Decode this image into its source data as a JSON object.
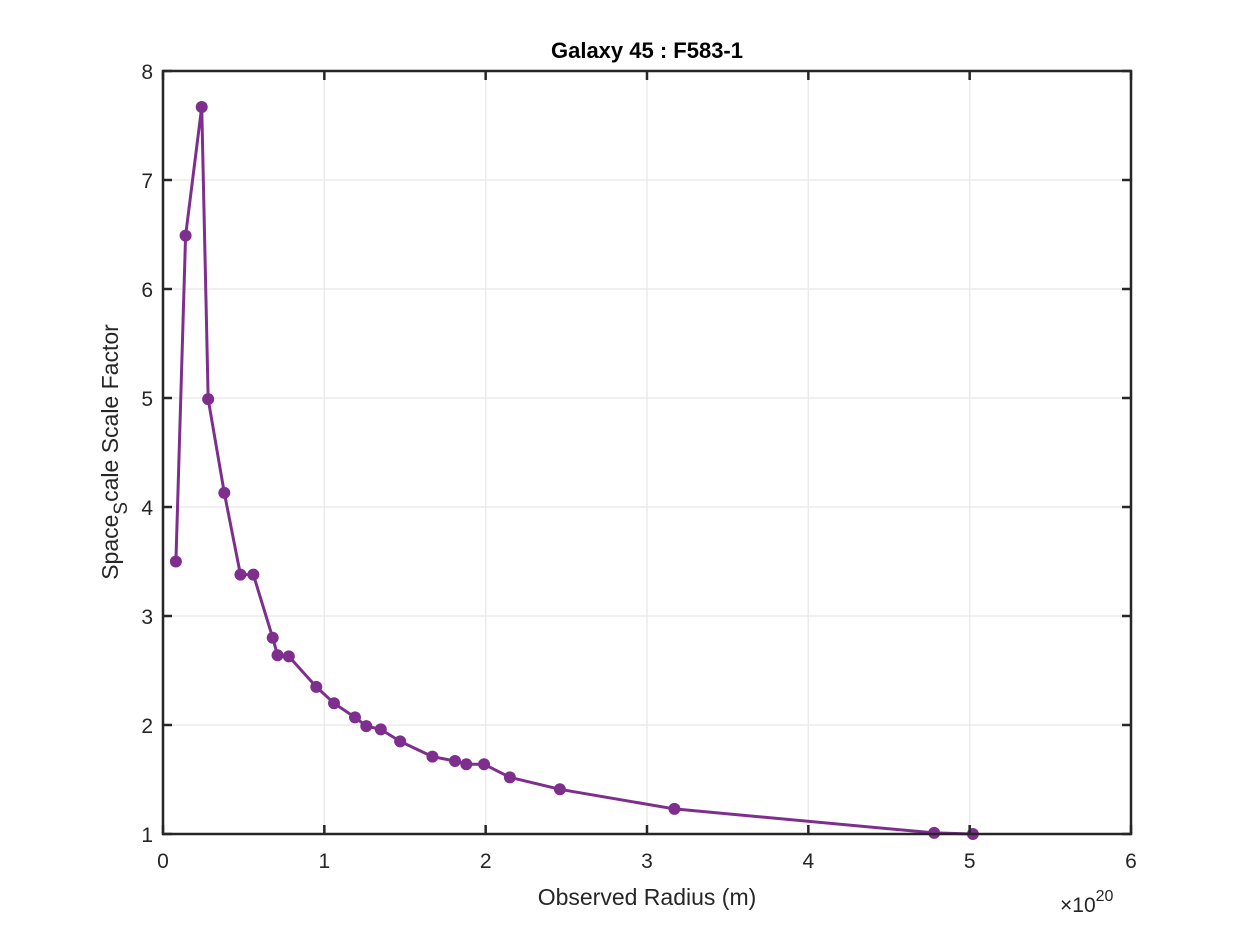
{
  "chart_data": {
    "type": "line",
    "title": "Galaxy 45 : F583-1",
    "xlabel": "Observed Radius (m)",
    "ylabel": {
      "prefix": "Space",
      "subscript": "S",
      "suffix": "cale Scale Factor"
    },
    "x_exponent_label": {
      "base": "×10",
      "exponent": "20"
    },
    "x_scale_factor": 1e+20,
    "xlim": [
      0,
      6
    ],
    "ylim": [
      1,
      8
    ],
    "xticks": [
      "0",
      "1",
      "2",
      "3",
      "4",
      "5",
      "6"
    ],
    "yticks": [
      "1",
      "2",
      "3",
      "4",
      "5",
      "6",
      "7",
      "8"
    ],
    "grid": true,
    "color": "#7e2f8e",
    "series": [
      {
        "marker": "circle",
        "x": [
          0.08,
          0.14,
          0.24,
          0.28,
          0.38,
          0.48,
          0.56,
          0.68,
          0.71,
          0.78,
          0.95,
          1.06,
          1.19,
          1.26,
          1.35,
          1.47,
          1.67,
          1.81,
          1.88,
          1.99,
          2.15,
          2.46,
          3.17,
          4.78,
          5.02
        ],
        "y": [
          3.5,
          6.49,
          7.67,
          4.99,
          4.13,
          3.38,
          3.38,
          2.8,
          2.64,
          2.63,
          2.35,
          2.2,
          2.07,
          1.99,
          1.96,
          1.85,
          1.71,
          1.67,
          1.64,
          1.64,
          1.52,
          1.41,
          1.23,
          1.01,
          1.0
        ]
      }
    ]
  }
}
